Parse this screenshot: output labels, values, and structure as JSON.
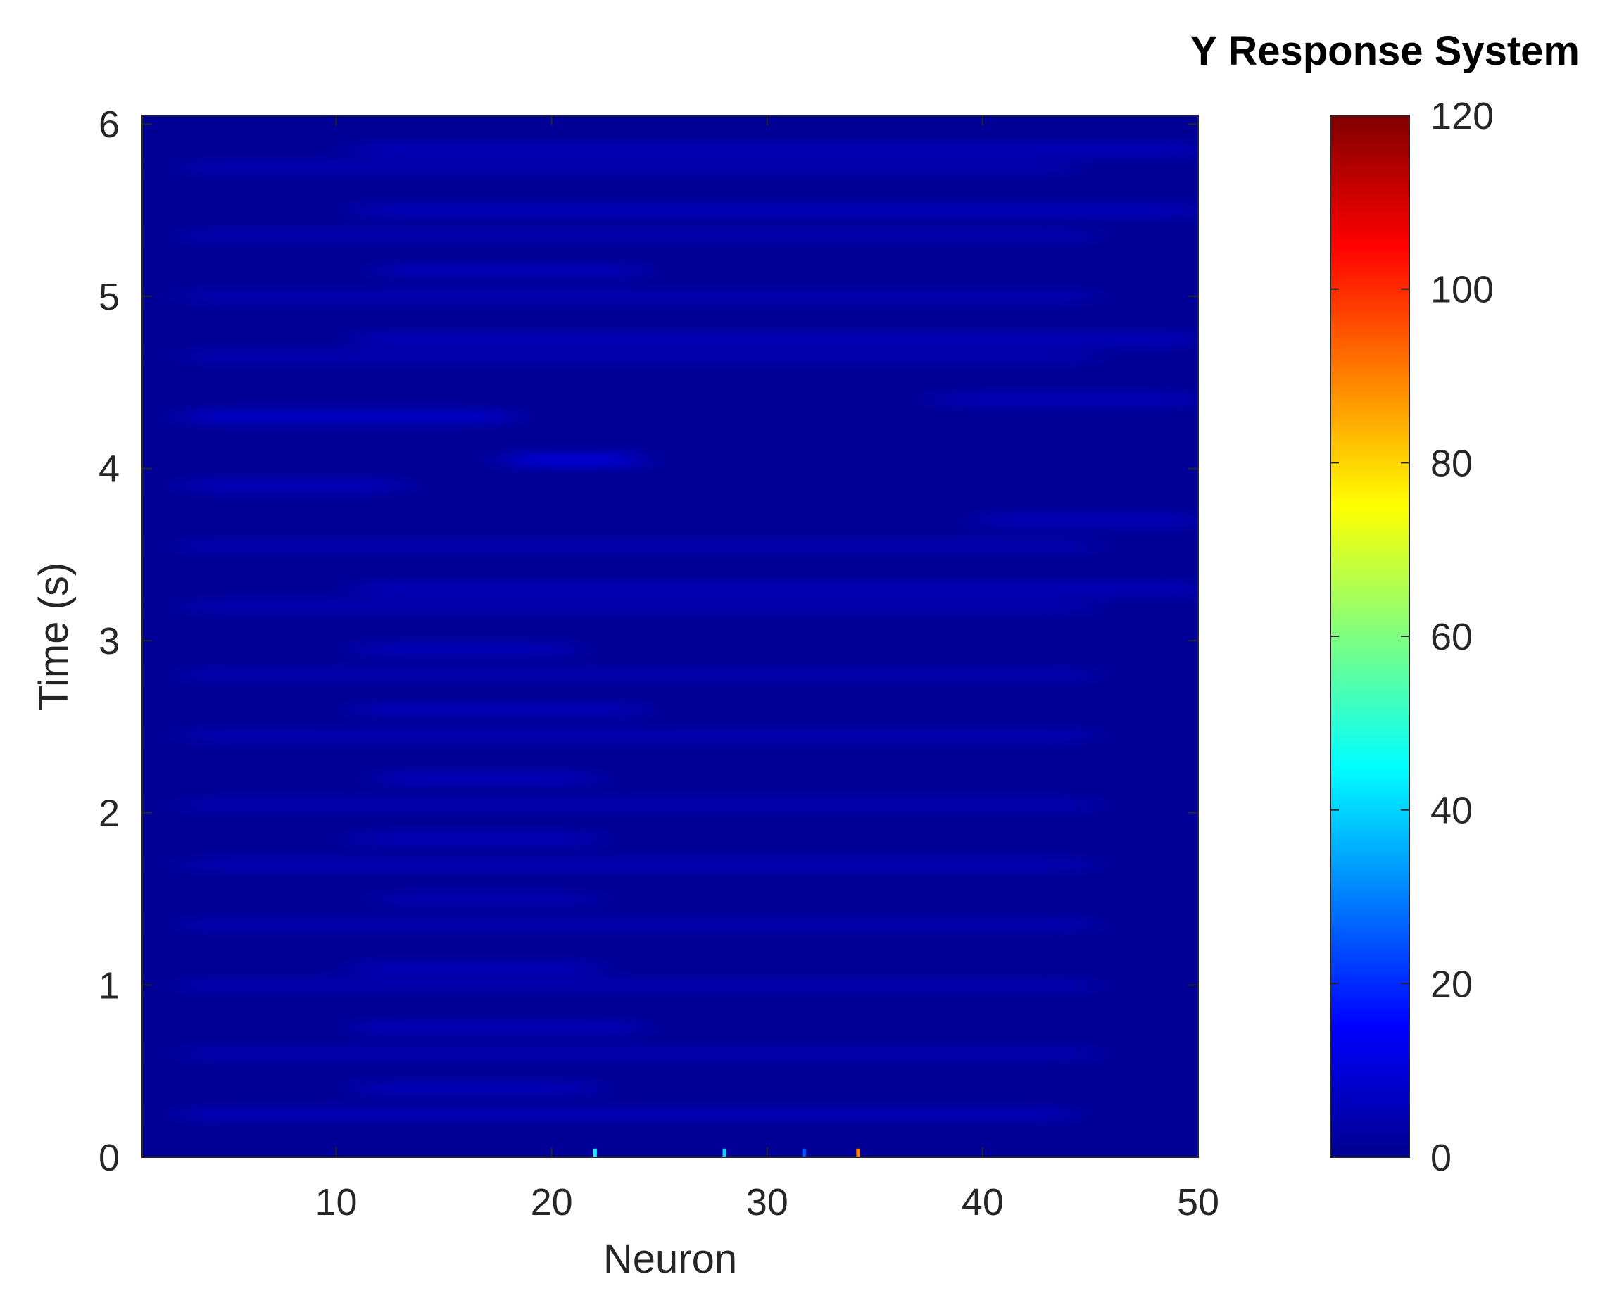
{
  "chart_data": {
    "type": "heatmap",
    "title": "Y Response System",
    "xlabel": "Neuron",
    "ylabel": "Time (s)",
    "xlim": [
      1,
      50
    ],
    "ylim": [
      0,
      6.05
    ],
    "xticks": [
      10,
      20,
      30,
      40,
      50
    ],
    "yticks": [
      0,
      1,
      2,
      3,
      4,
      5,
      6
    ],
    "colorbar": {
      "colormap": "jet",
      "range": [
        0,
        120
      ],
      "ticks": [
        0,
        20,
        40,
        60,
        80,
        100,
        120
      ]
    },
    "values_description_numeric": {
      "background_value": 2,
      "band_period_s": 0.2,
      "bands": [
        {
          "t": 0.25,
          "x": [
            3,
            44
          ],
          "v": 7
        },
        {
          "t": 0.4,
          "x": [
            11,
            22
          ],
          "v": 7
        },
        {
          "t": 0.6,
          "x": [
            3,
            45
          ],
          "v": 6
        },
        {
          "t": 0.75,
          "x": [
            11,
            24
          ],
          "v": 7
        },
        {
          "t": 1.0,
          "x": [
            3,
            45
          ],
          "v": 6
        },
        {
          "t": 1.1,
          "x": [
            11,
            22
          ],
          "v": 7
        },
        {
          "t": 1.35,
          "x": [
            3,
            45
          ],
          "v": 6
        },
        {
          "t": 1.5,
          "x": [
            12,
            22
          ],
          "v": 6
        },
        {
          "t": 1.7,
          "x": [
            3,
            45
          ],
          "v": 6
        },
        {
          "t": 1.85,
          "x": [
            11,
            22
          ],
          "v": 7
        },
        {
          "t": 2.05,
          "x": [
            3,
            45
          ],
          "v": 6
        },
        {
          "t": 2.2,
          "x": [
            12,
            22
          ],
          "v": 7
        },
        {
          "t": 2.45,
          "x": [
            3,
            45
          ],
          "v": 6
        },
        {
          "t": 2.6,
          "x": [
            11,
            24
          ],
          "v": 7
        },
        {
          "t": 2.8,
          "x": [
            3,
            45
          ],
          "v": 6
        },
        {
          "t": 2.95,
          "x": [
            11,
            21
          ],
          "v": 7
        },
        {
          "t": 3.2,
          "x": [
            3,
            45
          ],
          "v": 6
        },
        {
          "t": 3.3,
          "x": [
            11,
            50
          ],
          "v": 7
        },
        {
          "t": 3.55,
          "x": [
            3,
            45
          ],
          "v": 6
        },
        {
          "t": 3.7,
          "x": [
            40,
            50
          ],
          "v": 7
        },
        {
          "t": 3.9,
          "x": [
            3,
            13
          ],
          "v": 7
        },
        {
          "t": 4.05,
          "x": [
            18,
            24
          ],
          "v": 11
        },
        {
          "t": 4.3,
          "x": [
            3,
            18
          ],
          "v": 9
        },
        {
          "t": 4.4,
          "x": [
            38,
            50
          ],
          "v": 7
        },
        {
          "t": 4.65,
          "x": [
            3,
            45
          ],
          "v": 6
        },
        {
          "t": 4.75,
          "x": [
            11,
            50
          ],
          "v": 7
        },
        {
          "t": 5.0,
          "x": [
            3,
            45
          ],
          "v": 6
        },
        {
          "t": 5.15,
          "x": [
            12,
            24
          ],
          "v": 7
        },
        {
          "t": 5.35,
          "x": [
            3,
            45
          ],
          "v": 6
        },
        {
          "t": 5.5,
          "x": [
            11,
            50
          ],
          "v": 7
        },
        {
          "t": 5.75,
          "x": [
            3,
            44
          ],
          "v": 6
        },
        {
          "t": 5.85,
          "x": [
            11,
            50
          ],
          "v": 7
        }
      ],
      "spikes_at_t0": [
        {
          "neuron": 22,
          "v": 45
        },
        {
          "neuron": 28,
          "v": 40
        },
        {
          "neuron": 31.7,
          "v": 25
        },
        {
          "neuron": 34.2,
          "v": 90
        }
      ]
    }
  }
}
